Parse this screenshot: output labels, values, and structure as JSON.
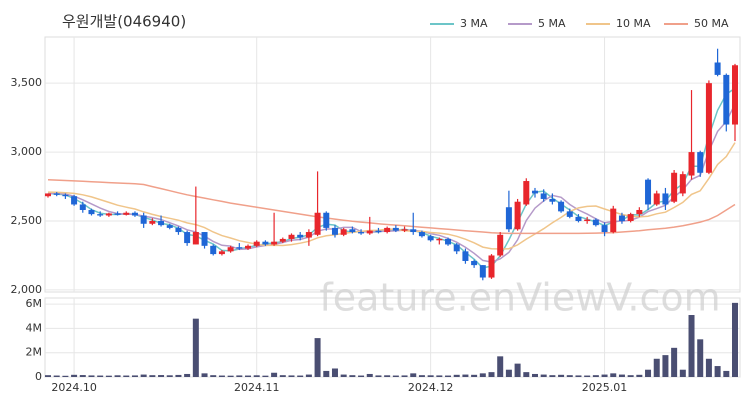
{
  "chart_data": {
    "type": "candlestick",
    "title": "우원개발(046940)",
    "watermark": "feature.enViewV.com",
    "categories": [
      null,
      null,
      null,
      "2024.10",
      null,
      null,
      null,
      null,
      null,
      null,
      null,
      null,
      null,
      null,
      null,
      null,
      null,
      null,
      null,
      null,
      null,
      null,
      null,
      null,
      "2024.11",
      null,
      null,
      null,
      null,
      null,
      null,
      null,
      null,
      null,
      null,
      null,
      null,
      null,
      null,
      null,
      null,
      null,
      null,
      null,
      "2024.12",
      null,
      null,
      null,
      null,
      null,
      null,
      null,
      null,
      null,
      null,
      null,
      null,
      null,
      null,
      null,
      null,
      null,
      null,
      null,
      "2025.01",
      null,
      null,
      null,
      null,
      null,
      null,
      null,
      null,
      null,
      null,
      null,
      null,
      null,
      null,
      null
    ],
    "up_color": "#e8262c",
    "down_color": "#1f66d6",
    "volume_color": "#4a4e72",
    "ohlc": [
      [
        2680,
        2700,
        2670,
        2700
      ],
      [
        2700,
        2710,
        2680,
        2690
      ],
      [
        2690,
        2700,
        2660,
        2680
      ],
      [
        2680,
        2690,
        2610,
        2620
      ],
      [
        2620,
        2640,
        2560,
        2580
      ],
      [
        2580,
        2590,
        2540,
        2550
      ],
      [
        2550,
        2570,
        2530,
        2540
      ],
      [
        2540,
        2560,
        2530,
        2555
      ],
      [
        2555,
        2570,
        2540,
        2545
      ],
      [
        2545,
        2570,
        2540,
        2560
      ],
      [
        2560,
        2570,
        2530,
        2540
      ],
      [
        2540,
        2560,
        2450,
        2480
      ],
      [
        2480,
        2520,
        2470,
        2500
      ],
      [
        2500,
        2540,
        2460,
        2470
      ],
      [
        2470,
        2480,
        2440,
        2450
      ],
      [
        2450,
        2460,
        2400,
        2420
      ],
      [
        2420,
        2430,
        2320,
        2340
      ],
      [
        2330,
        2750,
        2330,
        2420
      ],
      [
        2420,
        2420,
        2300,
        2320
      ],
      [
        2320,
        2330,
        2250,
        2260
      ],
      [
        2260,
        2290,
        2250,
        2280
      ],
      [
        2280,
        2320,
        2270,
        2310
      ],
      [
        2310,
        2340,
        2290,
        2300
      ],
      [
        2300,
        2330,
        2290,
        2320
      ],
      [
        2320,
        2360,
        2310,
        2350
      ],
      [
        2350,
        2360,
        2320,
        2330
      ],
      [
        2330,
        2560,
        2320,
        2350
      ],
      [
        2350,
        2380,
        2340,
        2370
      ],
      [
        2370,
        2410,
        2350,
        2400
      ],
      [
        2400,
        2420,
        2360,
        2380
      ],
      [
        2380,
        2440,
        2320,
        2420
      ],
      [
        2400,
        2860,
        2390,
        2560
      ],
      [
        2560,
        2570,
        2430,
        2450
      ],
      [
        2450,
        2470,
        2380,
        2400
      ],
      [
        2400,
        2450,
        2390,
        2440
      ],
      [
        2440,
        2460,
        2410,
        2420
      ],
      [
        2420,
        2440,
        2400,
        2410
      ],
      [
        2410,
        2530,
        2400,
        2430
      ],
      [
        2430,
        2450,
        2410,
        2420
      ],
      [
        2420,
        2460,
        2410,
        2450
      ],
      [
        2450,
        2470,
        2420,
        2430
      ],
      [
        2430,
        2460,
        2420,
        2440
      ],
      [
        2440,
        2560,
        2400,
        2420
      ],
      [
        2420,
        2430,
        2380,
        2390
      ],
      [
        2390,
        2400,
        2350,
        2360
      ],
      [
        2360,
        2380,
        2330,
        2370
      ],
      [
        2370,
        2380,
        2320,
        2330
      ],
      [
        2330,
        2340,
        2260,
        2280
      ],
      [
        2280,
        2300,
        2190,
        2210
      ],
      [
        2210,
        2220,
        2160,
        2180
      ],
      [
        2180,
        2180,
        2070,
        2090
      ],
      [
        2090,
        2260,
        2080,
        2250
      ],
      [
        2250,
        2420,
        2240,
        2400
      ],
      [
        2600,
        2720,
        2420,
        2440
      ],
      [
        2440,
        2660,
        2430,
        2640
      ],
      [
        2620,
        2810,
        2610,
        2790
      ],
      [
        2720,
        2740,
        2670,
        2700
      ],
      [
        2700,
        2730,
        2640,
        2660
      ],
      [
        2660,
        2700,
        2620,
        2640
      ],
      [
        2640,
        2650,
        2560,
        2570
      ],
      [
        2570,
        2590,
        2520,
        2530
      ],
      [
        2530,
        2550,
        2490,
        2500
      ],
      [
        2500,
        2530,
        2480,
        2510
      ],
      [
        2510,
        2520,
        2460,
        2470
      ],
      [
        2470,
        2490,
        2390,
        2420
      ],
      [
        2420,
        2610,
        2410,
        2590
      ],
      [
        2540,
        2560,
        2480,
        2500
      ],
      [
        2500,
        2560,
        2490,
        2550
      ],
      [
        2550,
        2600,
        2530,
        2580
      ],
      [
        2800,
        2810,
        2580,
        2620
      ],
      [
        2620,
        2720,
        2610,
        2700
      ],
      [
        2700,
        2740,
        2580,
        2620
      ],
      [
        2640,
        2870,
        2630,
        2850
      ],
      [
        2700,
        2860,
        2680,
        2840
      ],
      [
        2830,
        3450,
        2800,
        3000
      ],
      [
        3000,
        3010,
        2820,
        2850
      ],
      [
        2850,
        3520,
        2840,
        3500
      ],
      [
        3650,
        3750,
        3550,
        3560
      ],
      [
        3560,
        3570,
        3150,
        3200
      ],
      [
        3200,
        3640,
        3080,
        3630
      ]
    ],
    "volume": [
      150000,
      120000,
      100000,
      180000,
      160000,
      130000,
      120000,
      110000,
      140000,
      120000,
      130000,
      200000,
      150000,
      160000,
      140000,
      170000,
      250000,
      4800000,
      300000,
      150000,
      120000,
      110000,
      130000,
      120000,
      140000,
      110000,
      350000,
      150000,
      130000,
      120000,
      200000,
      3200000,
      500000,
      700000,
      200000,
      150000,
      120000,
      250000,
      130000,
      140000,
      120000,
      130000,
      300000,
      150000,
      140000,
      130000,
      120000,
      180000,
      200000,
      180000,
      300000,
      400000,
      1700000,
      600000,
      1100000,
      400000,
      250000,
      200000,
      150000,
      180000,
      150000,
      130000,
      120000,
      150000,
      200000,
      300000,
      200000,
      150000,
      180000,
      600000,
      1500000,
      1800000,
      2400000,
      600000,
      5100000,
      3100000,
      1500000,
      900000,
      500000,
      6100000
    ],
    "series": [
      {
        "name": "3 MA",
        "color": "#6cc5c8",
        "values": [
          2700,
          2695,
          2690,
          2663,
          2627,
          2583,
          2557,
          2548,
          2547,
          2553,
          2548,
          2527,
          2507,
          2483,
          2473,
          2447,
          2403,
          2393,
          2360,
          2333,
          2287,
          2283,
          2297,
          2310,
          2323,
          2333,
          2343,
          2350,
          2373,
          2383,
          2400,
          2453,
          2477,
          2470,
          2430,
          2420,
          2423,
          2420,
          2420,
          2433,
          2433,
          2440,
          2430,
          2417,
          2390,
          2373,
          2353,
          2327,
          2273,
          2223,
          2160,
          2173,
          2247,
          2363,
          2493,
          2623,
          2710,
          2717,
          2667,
          2623,
          2580,
          2533,
          2513,
          2493,
          2467,
          2493,
          2503,
          2547,
          2543,
          2583,
          2633,
          2647,
          2723,
          2770,
          2897,
          2897,
          3117,
          3303,
          3420,
          3463
        ]
      },
      {
        "name": "5 MA",
        "color": "#b59ac9",
        "values": [
          2700,
          2700,
          2695,
          2680,
          2654,
          2624,
          2594,
          2569,
          2554,
          2550,
          2548,
          2536,
          2525,
          2510,
          2488,
          2464,
          2436,
          2420,
          2390,
          2352,
          2324,
          2318,
          2294,
          2298,
          2312,
          2322,
          2330,
          2344,
          2360,
          2366,
          2384,
          2426,
          2442,
          2442,
          2454,
          2454,
          2424,
          2420,
          2424,
          2426,
          2428,
          2434,
          2432,
          2426,
          2408,
          2396,
          2374,
          2346,
          2310,
          2266,
          2214,
          2202,
          2226,
          2272,
          2364,
          2504,
          2594,
          2646,
          2686,
          2672,
          2620,
          2580,
          2550,
          2516,
          2486,
          2498,
          2498,
          2506,
          2528,
          2568,
          2590,
          2614,
          2674,
          2726,
          2802,
          2832,
          3008,
          3150,
          3222,
          3348
        ]
      },
      {
        "name": "10 MA",
        "color": "#f0c58a",
        "values": [
          2710,
          2708,
          2705,
          2700,
          2690,
          2675,
          2655,
          2635,
          2615,
          2600,
          2587,
          2566,
          2548,
          2533,
          2520,
          2506,
          2486,
          2474,
          2452,
          2420,
          2394,
          2377,
          2357,
          2344,
          2332,
          2323,
          2324,
          2322,
          2329,
          2339,
          2353,
          2378,
          2393,
          2401,
          2410,
          2419,
          2425,
          2431,
          2433,
          2440,
          2441,
          2429,
          2426,
          2425,
          2417,
          2412,
          2404,
          2389,
          2368,
          2342,
          2311,
          2299,
          2297,
          2299,
          2327,
          2369,
          2406,
          2444,
          2487,
          2526,
          2570,
          2595,
          2606,
          2609,
          2587,
          2567,
          2547,
          2536,
          2530,
          2535,
          2552,
          2564,
          2598,
          2635,
          2693,
          2719,
          2809,
          2910,
          2968,
          3069
        ]
      },
      {
        "name": "50 MA",
        "color": "#f0a08a",
        "values": [
          2800,
          2797,
          2794,
          2791,
          2788,
          2785,
          2782,
          2779,
          2776,
          2773,
          2770,
          2765,
          2750,
          2735,
          2720,
          2705,
          2690,
          2678,
          2666,
          2654,
          2642,
          2630,
          2620,
          2610,
          2600,
          2590,
          2580,
          2570,
          2560,
          2550,
          2540,
          2530,
          2522,
          2514,
          2506,
          2498,
          2492,
          2486,
          2480,
          2475,
          2470,
          2465,
          2460,
          2455,
          2450,
          2445,
          2440,
          2435,
          2430,
          2425,
          2420,
          2415,
          2412,
          2410,
          2410,
          2410,
          2410,
          2410,
          2410,
          2410,
          2410,
          2410,
          2411,
          2412,
          2414,
          2416,
          2420,
          2425,
          2430,
          2436,
          2442,
          2448,
          2456,
          2466,
          2478,
          2492,
          2510,
          2540,
          2580,
          2620
        ]
      }
    ],
    "ylim": [
      1985,
      3835
    ],
    "yticks": [
      {
        "value": 2000,
        "label": "2,000"
      },
      {
        "value": 2500,
        "label": "2,500"
      },
      {
        "value": 3000,
        "label": "3,000"
      },
      {
        "value": 3500,
        "label": "3,500"
      }
    ],
    "volume_ylim": [
      0,
      6500000
    ],
    "volume_yticks": [
      0,
      {
        "value": 2000000,
        "label": "2M"
      },
      {
        "value": 4000000,
        "label": "4M"
      },
      {
        "value": 6000000,
        "label": "6M"
      }
    ],
    "grid": true
  }
}
